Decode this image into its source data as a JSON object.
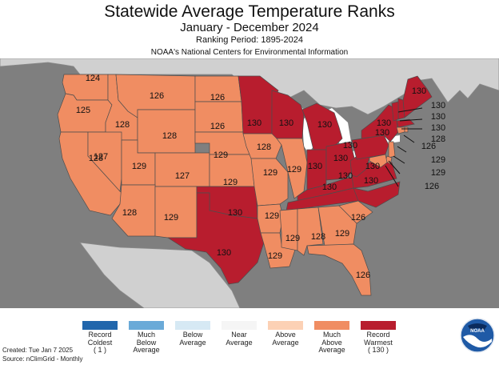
{
  "header": {
    "title": "Statewide Average Temperature Ranks",
    "subtitle": "January - December 2024",
    "period": "Ranking Period: 1895-2024",
    "credit": "NOAA's National Centers for Environmental Information"
  },
  "colors": {
    "background_map": "#7f7f7f",
    "canada_mexico": "#d0d0d0",
    "water": "#ffffff",
    "much_above": "#f08d62",
    "record_warmest": "#b81d2e",
    "state_border": "#4d4d4d"
  },
  "legend": [
    {
      "label": "Record\nColdest\n( 1 )",
      "color": "#2166ac"
    },
    {
      "label": "Much\nBelow\nAverage",
      "color": "#6aaad8"
    },
    {
      "label": "Below\nAverage",
      "color": "#d6e9f4"
    },
    {
      "label": "Near\nAverage",
      "color": "#f5f5f5"
    },
    {
      "label": "Above\nAverage",
      "color": "#fcd1b5"
    },
    {
      "label": "Much\nAbove\nAverage",
      "color": "#f08d62"
    },
    {
      "label": "Record\nWarmest\n( 130 )",
      "color": "#b81d2e"
    }
  ],
  "states": [
    {
      "state": "WA",
      "rank": 124,
      "category": "much_above"
    },
    {
      "state": "OR",
      "rank": 125,
      "category": "much_above"
    },
    {
      "state": "CA",
      "rank": 128,
      "category": "much_above"
    },
    {
      "state": "ID",
      "rank": 128,
      "category": "much_above"
    },
    {
      "state": "NV",
      "rank": 127,
      "category": "much_above"
    },
    {
      "state": "MT",
      "rank": 126,
      "category": "much_above"
    },
    {
      "state": "WY",
      "rank": 128,
      "category": "much_above"
    },
    {
      "state": "UT",
      "rank": 129,
      "category": "much_above"
    },
    {
      "state": "CO",
      "rank": 127,
      "category": "much_above"
    },
    {
      "state": "AZ",
      "rank": 128,
      "category": "much_above"
    },
    {
      "state": "NM",
      "rank": 129,
      "category": "much_above"
    },
    {
      "state": "ND",
      "rank": 126,
      "category": "much_above"
    },
    {
      "state": "SD",
      "rank": 126,
      "category": "much_above"
    },
    {
      "state": "NE",
      "rank": 129,
      "category": "much_above"
    },
    {
      "state": "KS",
      "rank": 129,
      "category": "much_above"
    },
    {
      "state": "OK",
      "rank": 130,
      "category": "record_warmest"
    },
    {
      "state": "TX",
      "rank": 130,
      "category": "record_warmest"
    },
    {
      "state": "MN",
      "rank": 130,
      "category": "record_warmest"
    },
    {
      "state": "IA",
      "rank": 128,
      "category": "much_above"
    },
    {
      "state": "MO",
      "rank": 129,
      "category": "much_above"
    },
    {
      "state": "AR",
      "rank": 129,
      "category": "much_above"
    },
    {
      "state": "LA",
      "rank": 129,
      "category": "much_above"
    },
    {
      "state": "WI",
      "rank": 130,
      "category": "record_warmest"
    },
    {
      "state": "IL",
      "rank": 129,
      "category": "much_above"
    },
    {
      "state": "MI",
      "rank": 130,
      "category": "record_warmest"
    },
    {
      "state": "IN",
      "rank": 130,
      "category": "record_warmest"
    },
    {
      "state": "OH",
      "rank": 130,
      "category": "record_warmest"
    },
    {
      "state": "KY",
      "rank": 130,
      "category": "record_warmest"
    },
    {
      "state": "TN",
      "rank": 130,
      "category": "record_warmest"
    },
    {
      "state": "MS",
      "rank": 129,
      "category": "much_above"
    },
    {
      "state": "AL",
      "rank": 128,
      "category": "much_above"
    },
    {
      "state": "GA",
      "rank": 129,
      "category": "much_above"
    },
    {
      "state": "FL",
      "rank": 126,
      "category": "much_above"
    },
    {
      "state": "SC",
      "rank": 126,
      "category": "much_above"
    },
    {
      "state": "NC",
      "rank": 130,
      "category": "record_warmest"
    },
    {
      "state": "VA",
      "rank": 130,
      "category": "record_warmest"
    },
    {
      "state": "WV",
      "rank": 130,
      "category": "record_warmest"
    },
    {
      "state": "PA",
      "rank": 130,
      "category": "record_warmest"
    },
    {
      "state": "NY",
      "rank": 130,
      "category": "record_warmest"
    },
    {
      "state": "ME",
      "rank": 130,
      "category": "record_warmest"
    },
    {
      "state": "NH",
      "rank": 130,
      "category": "record_warmest"
    },
    {
      "state": "VT",
      "rank": 130,
      "category": "record_warmest"
    },
    {
      "state": "MA",
      "rank": 130,
      "category": "record_warmest"
    },
    {
      "state": "CT",
      "rank": 128,
      "category": "much_above"
    },
    {
      "state": "RI",
      "rank": 126,
      "category": "much_above"
    },
    {
      "state": "NJ",
      "rank": 129,
      "category": "much_above"
    },
    {
      "state": "DE",
      "rank": 129,
      "category": "much_above"
    },
    {
      "state": "MD",
      "rank": 126,
      "category": "much_above"
    }
  ],
  "footer": {
    "created": "Created: Tue Jan  7 2025",
    "source": "Source: nClimGrid - Monthly"
  },
  "logo": {
    "text": "NOAA"
  }
}
